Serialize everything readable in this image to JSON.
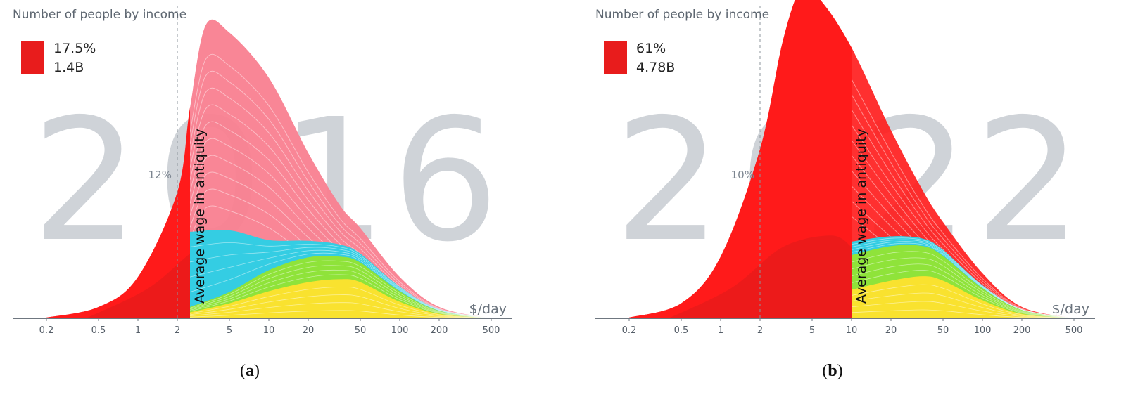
{
  "panels": [
    {
      "year": "2016",
      "title": "Number of people by income",
      "legend_pct": "17.5%",
      "legend_count": "1.4B",
      "threshold_pct_label": "12%",
      "vertical_label": "Average wage in antiquity",
      "x_unit": "$/day",
      "caption_letter": "a",
      "highlight_upto": 2.5
    },
    {
      "year": "2022",
      "title": "Number of people by income",
      "legend_pct": "61%",
      "legend_count": "4.78B",
      "threshold_pct_label": "10%",
      "vertical_label": "Average wage in antiquity",
      "x_unit": "$/day",
      "caption_letter": "b",
      "highlight_upto": 10
    }
  ],
  "chart_data": [
    {
      "type": "area",
      "title": "Number of people by income",
      "xlabel": "$/day",
      "x_scale": "log",
      "xlim": [
        0.2,
        500
      ],
      "x_ticks": [
        "0.2",
        "0.5",
        "1",
        "2",
        "5",
        "10",
        "20",
        "50",
        "100",
        "200",
        "500"
      ],
      "reference_line": {
        "x": 2,
        "label": "12%"
      },
      "highlight": {
        "upto": 2.5,
        "label": "Average wage in antiquity",
        "share": "17.5%",
        "people": "1.4B"
      },
      "series": [
        {
          "name": "yellow",
          "color": "#f9e22f",
          "x": [
            2.5,
            5,
            10,
            20,
            35,
            50,
            100,
            200,
            500
          ],
          "y": [
            8,
            20,
            36,
            48,
            52,
            48,
            22,
            6,
            0
          ]
        },
        {
          "name": "green",
          "color": "#8fe33a",
          "x": [
            2.5,
            5,
            10,
            20,
            35,
            50,
            100,
            200,
            500
          ],
          "y": [
            7,
            15,
            28,
            33,
            30,
            26,
            14,
            4,
            0
          ]
        },
        {
          "name": "cyan",
          "color": "#34cde3",
          "x": [
            2.5,
            5,
            10,
            20,
            35,
            50,
            100,
            200,
            500
          ],
          "y": [
            100,
            82,
            40,
            22,
            16,
            12,
            6,
            2,
            0
          ]
        },
        {
          "name": "pink",
          "color": "#f98090",
          "x": [
            0.2,
            0.5,
            1,
            2,
            2.5,
            3.3,
            5,
            10,
            20,
            35,
            50,
            100,
            200,
            500
          ],
          "y": [
            1,
            15,
            55,
            168,
            280,
            390,
            380,
            320,
            220,
            150,
            120,
            55,
            15,
            0
          ]
        }
      ]
    },
    {
      "type": "area",
      "title": "Number of people by income",
      "xlabel": "$/day",
      "x_scale": "log",
      "xlim": [
        0.2,
        500
      ],
      "x_ticks": [
        "0.2",
        "0.5",
        "1",
        "2",
        "5",
        "10",
        "20",
        "50",
        "100",
        "200",
        "500"
      ],
      "reference_line": {
        "x": 2,
        "label": "10%"
      },
      "highlight": {
        "upto": 10,
        "label": "Average wage in antiquity",
        "share": "61%",
        "people": "4.78B"
      },
      "series": [
        {
          "name": "yellow",
          "color": "#f9e22f",
          "x": [
            10,
            20,
            35,
            50,
            100,
            200,
            500
          ],
          "y": [
            38,
            50,
            56,
            50,
            24,
            6,
            0
          ]
        },
        {
          "name": "green",
          "color": "#8fe33a",
          "x": [
            10,
            20,
            35,
            50,
            100,
            200,
            500
          ],
          "y": [
            46,
            46,
            40,
            33,
            16,
            5,
            0
          ]
        },
        {
          "name": "cyan",
          "color": "#34cde3",
          "x": [
            10,
            20,
            35,
            50,
            100,
            200,
            500
          ],
          "y": [
            18,
            13,
            10,
            8,
            4,
            1,
            0
          ]
        },
        {
          "name": "red",
          "color": "#ff1a1a",
          "x": [
            0.2,
            0.5,
            1,
            2,
            3,
            4.2,
            6,
            10,
            20,
            35,
            50,
            100,
            200,
            500
          ],
          "y": [
            1,
            20,
            82,
            225,
            370,
            440,
            420,
            360,
            250,
            170,
            128,
            60,
            15,
            0
          ]
        }
      ]
    }
  ]
}
